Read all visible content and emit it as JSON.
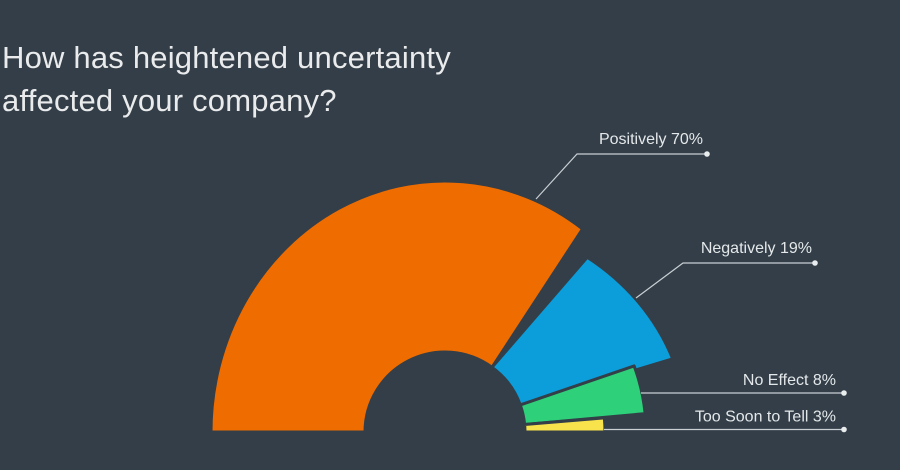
{
  "title": {
    "line1": "How has heightened uncertainty",
    "line2": "affected your company?"
  },
  "colors": {
    "background": "#333E48",
    "title_text": "#E9EBEC",
    "label_text": "#E4E8EA",
    "leader_line": "#C9CFD3",
    "leader_dot": "#EAEDEE",
    "positively": "#EF6D00",
    "negatively": "#0B9EDA",
    "no_effect": "#2ED17A",
    "too_soon": "#F8E34C"
  },
  "chart_data": {
    "type": "pie",
    "variant": "half-donut",
    "title": "How has heightened uncertainty affected your company?",
    "unit": "%",
    "total_angle_deg": 180,
    "categories": [
      "Positively",
      "Negatively",
      "No Effect",
      "Too Soon to Tell"
    ],
    "values": [
      70,
      19,
      8,
      3
    ],
    "series": [
      {
        "label": "Positively",
        "value": 70,
        "display": "Positively 70%",
        "color": "#EF6D00"
      },
      {
        "label": "Negatively",
        "value": 19,
        "display": "Negatively 19%",
        "color": "#0B9EDA"
      },
      {
        "label": "No Effect",
        "value": 8,
        "display": "No Effect 8%",
        "color": "#2ED17A"
      },
      {
        "label": "Too Soon to Tell",
        "value": 3,
        "display": "Too Soon to Tell 3%",
        "color": "#F8E34C"
      }
    ],
    "legend_position": "callout-labels-right",
    "callout_style": {
      "leader_lines": true,
      "end_dots": true
    },
    "grid": false
  }
}
